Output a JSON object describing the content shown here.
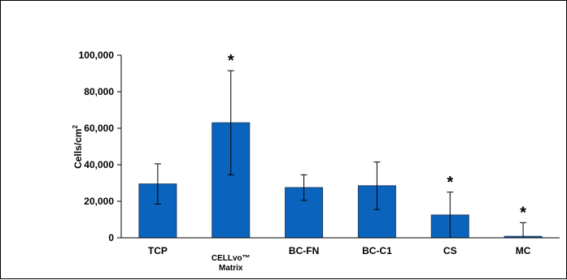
{
  "chart_data": {
    "type": "bar",
    "title": "",
    "xlabel": "",
    "ylabel": "Cells/cm",
    "ylabel_superscript": "2",
    "ylim": [
      0,
      100000
    ],
    "yticks": [
      0,
      20000,
      40000,
      60000,
      80000,
      100000
    ],
    "ytick_labels": [
      "0",
      "20,000",
      "40,000",
      "60,000",
      "80,000",
      "100,000"
    ],
    "categories": [
      [
        "TCP"
      ],
      [
        "CELLvo™",
        "Matrix"
      ],
      [
        "BC-FN"
      ],
      [
        "BC-C1"
      ],
      [
        "CS"
      ],
      [
        "MC"
      ]
    ],
    "values": [
      29500,
      63000,
      27500,
      28500,
      12500,
      800
    ],
    "error": [
      11000,
      28500,
      7000,
      13000,
      12500,
      7500
    ],
    "significance": [
      "",
      "*",
      "",
      "",
      "*",
      "*"
    ],
    "bar_color": "#0a64be",
    "bar_edge_color": "#1f3f66",
    "grid": false,
    "legend": false
  }
}
